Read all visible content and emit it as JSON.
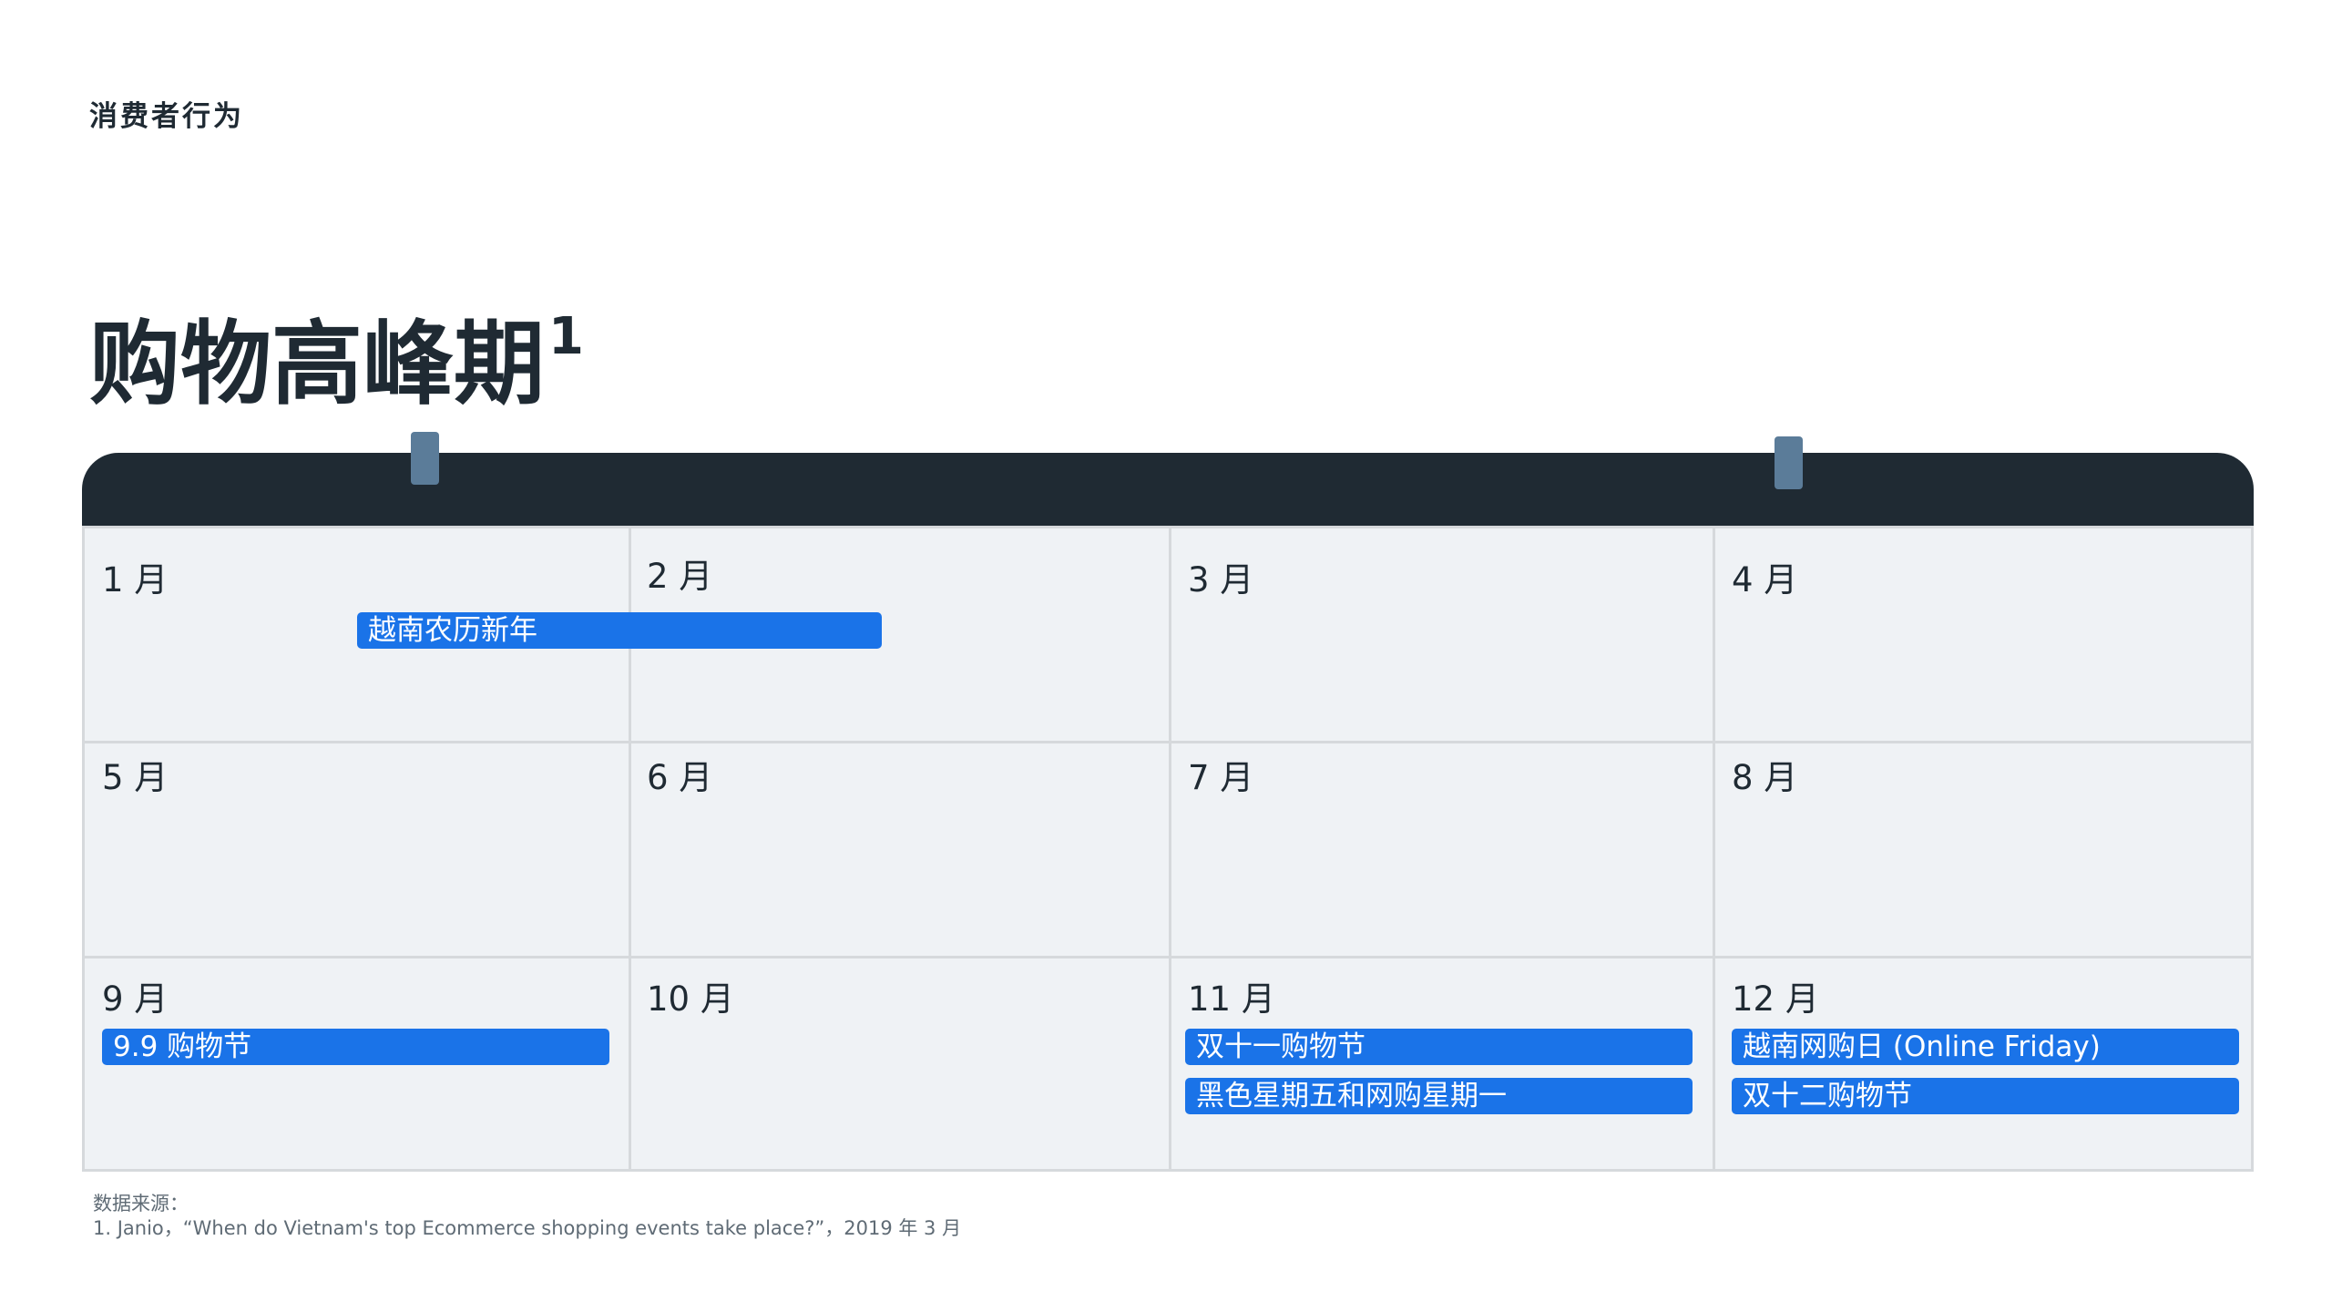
{
  "header": {
    "section_label": "消费者行为",
    "title": "购物高峰期",
    "title_superscript": "1"
  },
  "calendar": {
    "months": [
      "1 月",
      "2 月",
      "3 月",
      "4 月",
      "5 月",
      "6 月",
      "7 月",
      "8 月",
      "9 月",
      "10 月",
      "11 月",
      "12 月"
    ],
    "events": [
      {
        "label": "越南农历新年",
        "months": "1 月 – 2 月"
      },
      {
        "label": "9.9 购物节",
        "months": "9 月"
      },
      {
        "label": "双十一购物节",
        "months": "11 月"
      },
      {
        "label": "黑色星期五和网购星期一",
        "months": "11 月"
      },
      {
        "label": "越南网购日 (Online Friday)",
        "months": "12 月"
      },
      {
        "label": "双十二购物节",
        "months": "12 月"
      }
    ],
    "colors": {
      "header_bar": "#1f2a33",
      "ring": "#5b7c99",
      "cell_background": "#eff2f5",
      "grid_line": "#d6d9dc",
      "event": "#1a73e8"
    }
  },
  "footnote": {
    "source_label": "数据来源：",
    "reference": "1. Janio，“When do Vietnam's top Ecommerce shopping events take place?”，2019 年 3 月"
  }
}
